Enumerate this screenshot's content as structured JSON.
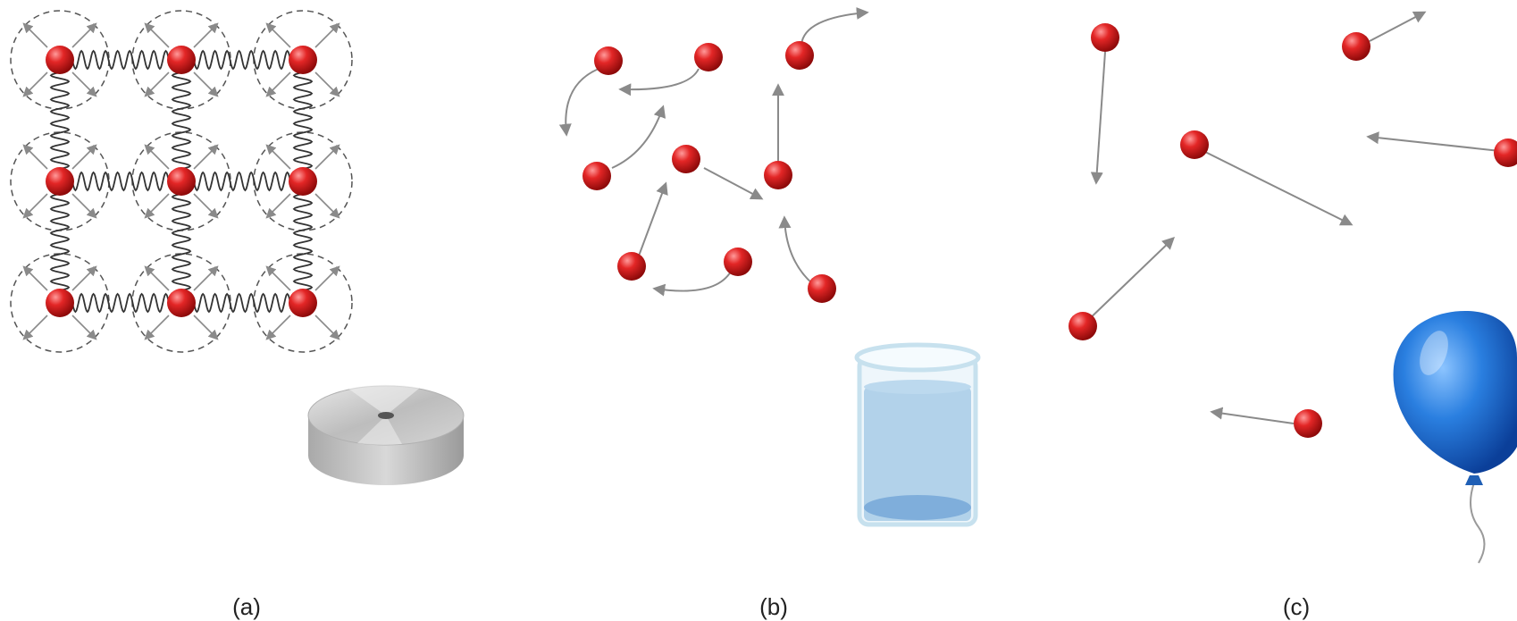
{
  "panels": [
    {
      "id": "a",
      "label": "(a)",
      "object": "metal-disc"
    },
    {
      "id": "b",
      "label": "(b)",
      "object": "water-beaker"
    },
    {
      "id": "c",
      "label": "(c)",
      "object": "blue-balloon"
    }
  ],
  "colors": {
    "particle": "#d32020",
    "arrow": "#8a8a8a",
    "spring": "#333333",
    "dashed_circle": "#555555",
    "disc": "#c6c6c6",
    "water": "#a7cbe6",
    "balloon": "#1d6fd6"
  }
}
